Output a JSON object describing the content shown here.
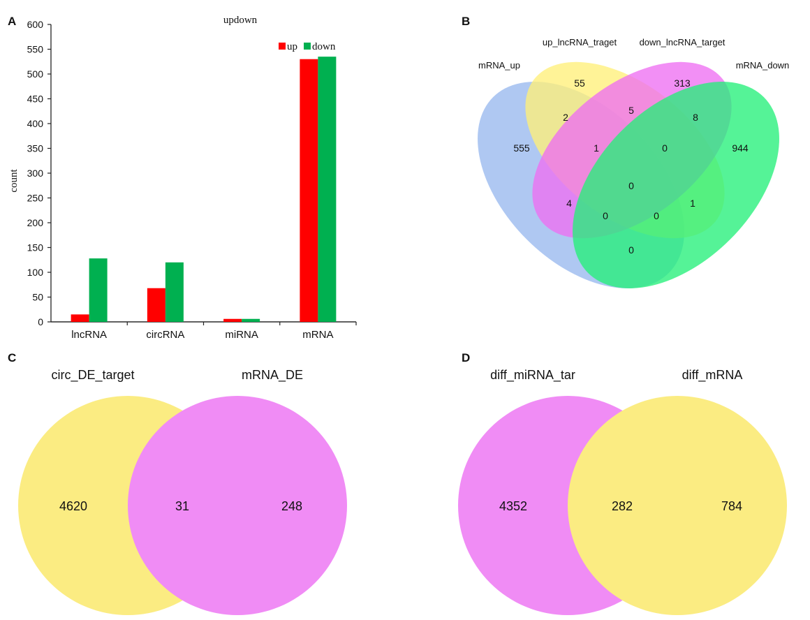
{
  "panels": {
    "a": {
      "label": "A"
    },
    "b": {
      "label": "B"
    },
    "c": {
      "label": "C"
    },
    "d": {
      "label": "D"
    }
  },
  "colors": {
    "up": "#ff0000",
    "down": "#00b050",
    "venn_blue": "#98b8ee",
    "venn_yellow": "#fff07a",
    "venn_magenta": "#ee70f2",
    "venn_green": "#25f07a",
    "two_yellow": "#fbec82",
    "two_magenta": "#f08cf5"
  },
  "chart_data": [
    {
      "type": "bar",
      "title": "updown",
      "xlabel": "",
      "ylabel": "count",
      "ylim": [
        0,
        600
      ],
      "yticks": [
        "0",
        "50",
        "100",
        "150",
        "200",
        "250",
        "300",
        "350",
        "400",
        "450",
        "500",
        "550",
        "600"
      ],
      "categories": [
        "lncRNA",
        "circRNA",
        "miRNA",
        "mRNA"
      ],
      "series": [
        {
          "name": "up",
          "values": [
            15,
            68,
            6,
            530
          ]
        },
        {
          "name": "down",
          "values": [
            128,
            120,
            6,
            535
          ]
        }
      ],
      "legend_position": "top-right",
      "grid": false
    },
    {
      "type": "venn",
      "sets": [
        "mRNA_up",
        "up_lncRNA_traget",
        "down_lncRNA_target",
        "mRNA_down"
      ],
      "regions": {
        "mRNA_up_only": "555",
        "up_lnc_only": "55",
        "down_lnc_only": "313",
        "mRNA_down_only": "944",
        "up_x_uplnc": "2",
        "uplnc_x_downlnc": "5",
        "downlnc_x_down": "8",
        "up_x_uplnc_x_downlnc": "1",
        "uplnc_x_downlnc_x_down": "0",
        "all_four": "0",
        "up_x_downlnc": "4",
        "uplnc_x_down": "1",
        "up_x_downlnc_x_down": "0",
        "up_x_uplnc_x_down": "0",
        "up_x_down": "0"
      }
    },
    {
      "type": "venn",
      "sets": [
        "circ_DE_target",
        "mRNA_DE"
      ],
      "regions": {
        "left_only": "4620",
        "both": "31",
        "right_only": "248"
      }
    },
    {
      "type": "venn",
      "sets": [
        "diff_miRNA_tar",
        "diff_mRNA"
      ],
      "regions": {
        "left_only": "4352",
        "both": "282",
        "right_only": "784"
      }
    }
  ]
}
